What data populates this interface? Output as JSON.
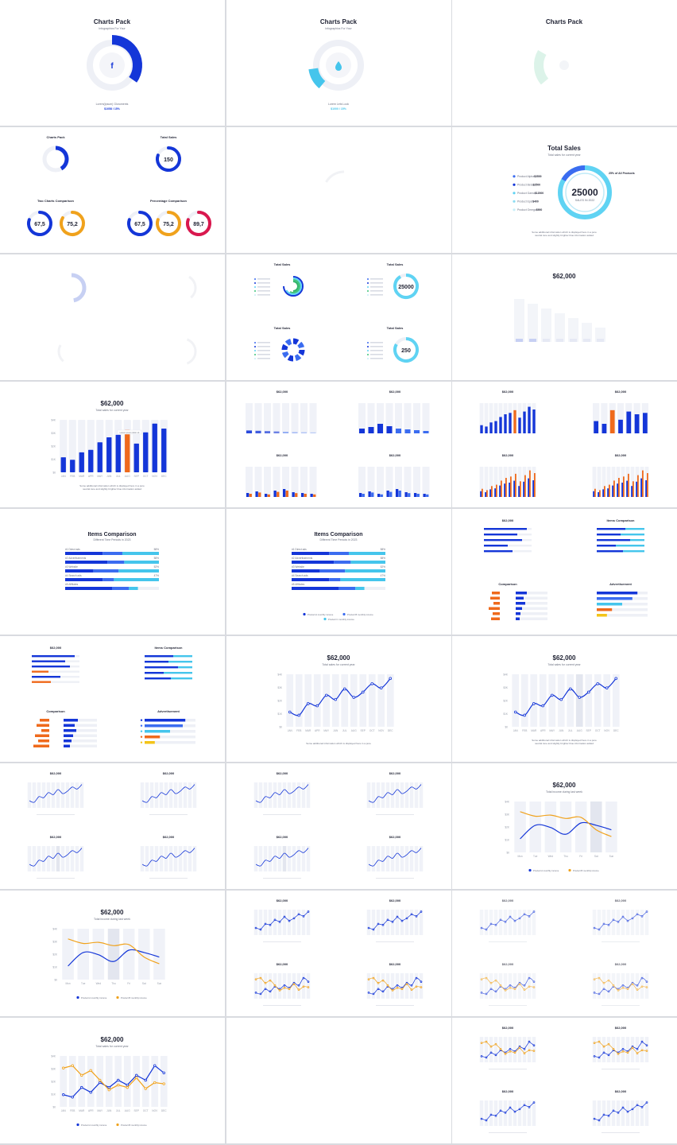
{
  "colors": {
    "blue": "#1436d8",
    "midblue": "#3b6cf0",
    "lightblue": "#45c5ec",
    "cyan": "#5fd3f3",
    "orange": "#ef6a1c",
    "amber": "#f0a21c",
    "red": "#d9184e",
    "green": "#3fc47a",
    "track": "#eef0f6",
    "column": "#f0f2f8",
    "column_hi": "#e3e6ef",
    "grid_line": "#e9ebf1",
    "faint": "#dfe3ea",
    "faint_blue": "#c7d0f3",
    "faint_green": "#cdeee0",
    "yellow": "#f3c419"
  },
  "charts_pack": {
    "title": "Charts Pack",
    "subtitle": "Infographics For Your",
    "left": {
      "icon": "facebook-icon",
      "label": "Lorem(Ipsum) Gloruments",
      "value": "$1058 / 15%"
    },
    "mid": {
      "icon": "drop-icon",
      "label": "Lorem Lets Look",
      "value": "$1000 / 15%"
    }
  },
  "cell_2_1": {
    "tl_title": "Charts Pack",
    "tr_title": "Total Sales",
    "tr_value": "150",
    "bl_title": "Two Charts Comparison",
    "bl_values": [
      "67,5",
      "75,2"
    ],
    "br_title": "Percentage Comparison",
    "br_values": [
      "67,5",
      "75,2",
      "89,7"
    ]
  },
  "total_sales": {
    "title": "Total Sales",
    "subtitle": "Total sales for current year",
    "center_value": "25000",
    "center_label": "SALES IN 2022",
    "callout": "25% of All Products",
    "legend": [
      {
        "name": "Product Alpha",
        "value": "$3500"
      },
      {
        "name": "Product Beta",
        "value": "$2500"
      },
      {
        "name": "Product Gama",
        "value": "$12000"
      },
      {
        "name": "Product Epsi",
        "value": "$400"
      },
      {
        "name": "Product Omega",
        "value": "$900"
      }
    ],
    "note_1": "Some additional information which is displayed here in a pure",
    "note_2": "neutral tone and slightly brighter blue information added"
  },
  "cell_3_2": {
    "titles": [
      "Total Sales",
      "Total Sales",
      "Total Sales",
      "Total Sales"
    ],
    "donut_values": [
      "25000",
      "250"
    ]
  },
  "faded_bar": {
    "title": "$62,000"
  },
  "bar_big": {
    "title": "$62,000",
    "subtitle": "Total sales for current year",
    "highlight_note": "Lorem ipsum dolor sit",
    "note_1": "Some additional information which is displayed here in a pure",
    "note_2": "neutral tone and slightly brighter blue information added"
  },
  "small_title": "$62,000",
  "items": {
    "title": "Items Comparison",
    "subtitle": "Different Time Periods in 2023",
    "rows": [
      {
        "label": "#1 Direct ads",
        "value": "58%"
      },
      {
        "label": "#2 Advertisements",
        "value": "58%"
      },
      {
        "label": "#3 Website",
        "value": "52%"
      },
      {
        "label": "#4 Search ads",
        "value": "47%"
      },
      {
        "label": "#5 Affiliates",
        "value": ""
      }
    ],
    "legend": [
      "Product A monthly income",
      "Product B monthly income",
      "Product C monthly income"
    ]
  },
  "mini_titles": {
    "comparison": "Comparison",
    "advertisement": "Advertisement",
    "items": "Items Comparison"
  },
  "line": {
    "title": "$62,000",
    "subtitle": "Total sales for current year",
    "subtitle_2": "Total income during last week",
    "note_1": "Some additional information which is displayed here in a pure",
    "note_2": "neutral tone and slightly brighter blue information added",
    "legend": [
      "Product A monthly income",
      "Product B monthly income"
    ]
  },
  "chart_data": [
    {
      "type": "bar",
      "categories": [
        "JAN",
        "FEB",
        "MAR",
        "APR",
        "MAY",
        "JUN",
        "JUL",
        "AUG",
        "SEP",
        "OCT",
        "NOV",
        "DEC"
      ],
      "values": [
        1.2,
        1.0,
        1.6,
        1.8,
        2.4,
        2.8,
        3.0,
        3.4,
        2.3,
        3.2,
        3.9,
        3.5
      ],
      "highlight_index": 7,
      "y_ticks": [
        "$0",
        "$1K",
        "$2K",
        "$3K",
        "$4K"
      ],
      "ylim": [
        0,
        4.2
      ]
    },
    {
      "type": "line",
      "categories": [
        "JAN",
        "FEB",
        "MAR",
        "APR",
        "MAY",
        "JUN",
        "JUL",
        "AUG",
        "SEP",
        "OCT",
        "NOV",
        "DEC"
      ],
      "values": [
        1.4,
        1.1,
        2.2,
        2.0,
        3.0,
        2.6,
        3.6,
        2.8,
        3.3,
        4.1,
        3.7,
        4.6
      ],
      "y_ticks": [
        "$0",
        "$1K",
        "$2K",
        "$3K",
        "$4K"
      ],
      "ylim": [
        0,
        5
      ]
    },
    {
      "type": "line",
      "categories": [
        "Mon",
        "Tue",
        "Wed",
        "Thu",
        "Fri",
        "Sat",
        "Sun"
      ],
      "series": [
        {
          "name": "Product A monthly income",
          "values": [
            1.2,
            2.4,
            2.2,
            1.6,
            2.6,
            2.4,
            2.0
          ]
        },
        {
          "name": "Product B monthly income",
          "values": [
            3.6,
            3.2,
            3.3,
            3.0,
            3.1,
            2.0,
            1.4
          ]
        }
      ],
      "y_ticks": [
        "$0",
        "$1K",
        "$2K",
        "$3K",
        "$4K"
      ],
      "ylim": [
        0,
        4.5
      ]
    },
    {
      "type": "line",
      "categories": [
        "JAN",
        "FEB",
        "MAR",
        "APR",
        "MAY",
        "JUN",
        "JUL",
        "AUG",
        "SEP",
        "OCT",
        "NOV",
        "DEC"
      ],
      "series": [
        {
          "name": "Product A monthly income",
          "values": [
            1.0,
            0.8,
            1.6,
            1.2,
            2.0,
            1.6,
            2.2,
            1.8,
            2.6,
            2.2,
            3.4,
            2.8
          ]
        },
        {
          "name": "Product B monthly income",
          "values": [
            3.2,
            3.4,
            2.6,
            3.0,
            2.2,
            1.4,
            1.8,
            1.6,
            2.4,
            1.5,
            2.0,
            1.9
          ]
        }
      ],
      "y_ticks": [
        "$0",
        "$1K",
        "$2K",
        "$3K",
        "$4K"
      ],
      "ylim": [
        0,
        4.2
      ]
    }
  ]
}
